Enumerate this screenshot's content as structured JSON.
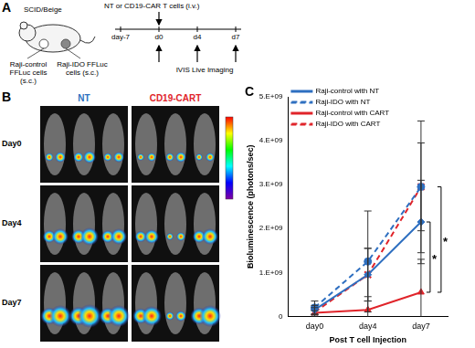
{
  "panel_labels": [
    "A",
    "B",
    "C"
  ],
  "panel_a": {
    "mouse": "SCID/Beige",
    "injection": "NT or CD19-CAR T cells (i.v.)",
    "timeline": [
      "day-7",
      "d0",
      "d4",
      "d7"
    ],
    "imaging": "IVIS Live Imaging",
    "left_flank": "Raji-control FFLuc cells (s.c.)",
    "right_flank": "Raji-IDO FFLuc cells (s.c.)"
  },
  "panel_b": {
    "columns": [
      "NT",
      "CD19-CART"
    ],
    "rows": [
      "Day0",
      "Day4",
      "Day7"
    ]
  },
  "chart_data": {
    "type": "line",
    "x_label": "Post T cell Injection",
    "y_label": "Bioluminescence (photons/sec)",
    "categories": [
      "day0",
      "day4",
      "day7"
    ],
    "series": [
      {
        "name": "Raji-control with NT",
        "color": "#2e6fc0",
        "values": [
          150000000,
          950000000,
          2150000000
        ],
        "errors": [
          100000000,
          600000000,
          950000000
        ],
        "marker": "diamond",
        "line_style": "solid"
      },
      {
        "name": "Raji-IDO with NT",
        "color": "#2e6fc0",
        "values": [
          200000000,
          1250000000,
          2950000000
        ],
        "errors": [
          150000000,
          1150000000,
          1500000000
        ],
        "marker": "circle",
        "line_style": "dashed"
      },
      {
        "name": "Raji-control with CART",
        "color": "#e0242a",
        "values": [
          80000000,
          150000000,
          550000000
        ],
        "errors": [
          50000000,
          300000000,
          750000000
        ],
        "marker": "triangle",
        "line_style": "solid"
      },
      {
        "name": "Raji-IDO with CART",
        "color": "#e0242a",
        "values": [
          100000000,
          950000000,
          2950000000
        ],
        "errors": [
          100000000,
          600000000,
          1000000000
        ],
        "marker": "x",
        "line_style": "dashed"
      }
    ],
    "ylim": [
      0,
      5000000000
    ],
    "yticks": [
      0,
      {
        "value": 1000000000,
        "label": "1.E+09"
      },
      {
        "value": 2000000000,
        "label": "2.E+09"
      },
      {
        "value": 3000000000,
        "label": "3.E+09"
      },
      {
        "value": 4000000000,
        "label": "4.E+09"
      },
      {
        "value": 5000000000,
        "label": "5.E+09"
      }
    ],
    "grid": false,
    "legend": "top-left",
    "annotations": [
      {
        "text": "*",
        "between": [
          "Raji-control with CART",
          "Raji-control with NT"
        ]
      },
      {
        "text": "*",
        "between": [
          "Raji-control with CART",
          "Raji-IDO with CART"
        ]
      }
    ]
  }
}
